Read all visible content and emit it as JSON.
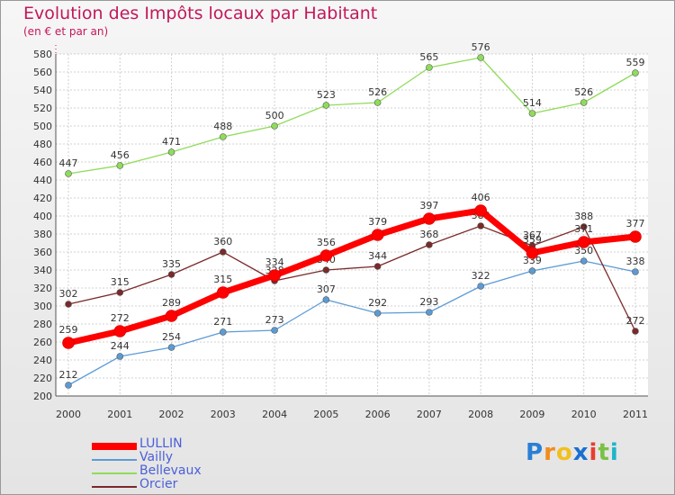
{
  "header": {
    "title": "Evolution des Impôts locaux par Habitant",
    "subtitle": "(en € et par an)"
  },
  "brand": {
    "letters": [
      "P",
      "r",
      "o",
      "x",
      "i",
      "t",
      "i"
    ],
    "colors": [
      "#2a7fd4",
      "#f28c1e",
      "#f2c01e",
      "#1a6fd0",
      "#e83e2e",
      "#7ac143",
      "#1fb5c9"
    ]
  },
  "chart_data": {
    "type": "line",
    "title": "Evolution des Impôts locaux par Habitant",
    "subtitle": "(en € et par an)",
    "x": [
      "2000",
      "2001",
      "2002",
      "2003",
      "2004",
      "2005",
      "2006",
      "2007",
      "2008",
      "2009",
      "2010",
      "2011"
    ],
    "ylim": [
      200,
      580
    ],
    "yticks": [
      200,
      220,
      240,
      260,
      280,
      300,
      320,
      340,
      360,
      380,
      400,
      420,
      440,
      460,
      480,
      500,
      520,
      540,
      560,
      580
    ],
    "grid": true,
    "legend_position": "bottom-left",
    "series": [
      {
        "name": "LULLIN",
        "color": "#ff0000",
        "values": [
          259,
          272,
          289,
          315,
          334,
          356,
          379,
          397,
          406,
          359,
          371,
          377
        ]
      },
      {
        "name": "Vailly",
        "color": "#5b9bd5",
        "values": [
          212,
          244,
          254,
          271,
          273,
          307,
          292,
          293,
          322,
          339,
          350,
          338
        ]
      },
      {
        "name": "Bellevaux",
        "color": "#8fdc5a",
        "values": [
          447,
          456,
          471,
          488,
          500,
          523,
          526,
          565,
          576,
          514,
          526,
          559
        ]
      },
      {
        "name": "Orcier",
        "color": "#7a2a2a",
        "values": [
          302,
          315,
          335,
          360,
          328,
          340,
          344,
          368,
          389,
          367,
          388,
          272
        ]
      }
    ]
  }
}
